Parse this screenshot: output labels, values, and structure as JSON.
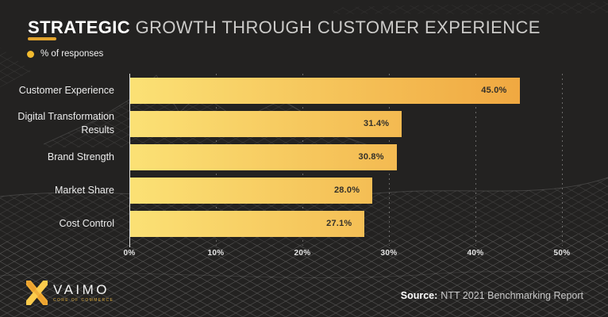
{
  "title": {
    "emphasis": "STRATEGIC",
    "rest": " GROWTH THROUGH CUSTOMER EXPERIENCE"
  },
  "legend": {
    "label": "% of responses"
  },
  "chart_data": {
    "type": "bar",
    "orientation": "horizontal",
    "title": "Strategic growth through customer experience",
    "series_name": "% of responses",
    "categories": [
      "Customer Experience",
      "Digital Transformation Results",
      "Brand Strength",
      "Market Share",
      "Cost Control"
    ],
    "values": [
      45.0,
      31.4,
      30.8,
      28.0,
      27.1
    ],
    "value_labels": [
      "45.0%",
      "31.4%",
      "30.8%",
      "28.0%",
      "27.1%"
    ],
    "x_ticks": [
      "0%",
      "10%",
      "20%",
      "30%",
      "40%",
      "50%"
    ],
    "xlim": [
      0,
      50
    ],
    "grid": "dotted-vertical-gridlines",
    "legend_position": "top-left",
    "bar_gradient": [
      "#FBE175",
      "#EFA23B"
    ]
  },
  "footer": {
    "logo_text": "VAIMO",
    "logo_tagline": "CORE OF COMMERCE",
    "source_label": "Source:",
    "source_text": "NTT 2021 Benchmarking Report"
  },
  "colors": {
    "background": "#232221",
    "accent_gold": "#E2A42E",
    "legend_dot": "#F3BB2F",
    "bar_gradient_start": "#FBE175",
    "bar_gradient_end": "#EFA23B",
    "bar_value_text": "#33302A",
    "title_emphasis": "#FFFFFF",
    "title_rest": "#CCCBC9",
    "axis_text": "#E3E3E3"
  }
}
